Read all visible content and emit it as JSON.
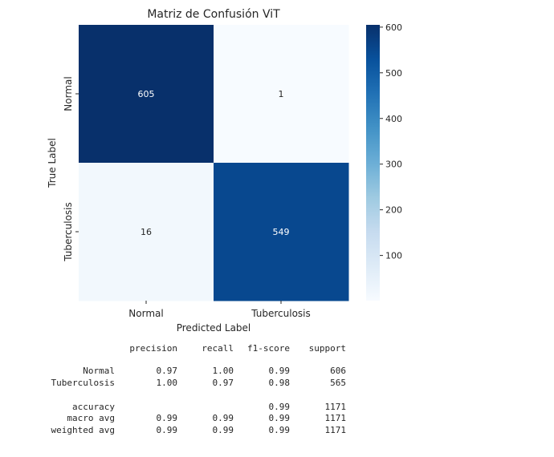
{
  "chart_data": {
    "type": "heatmap",
    "title": "Matriz de Confusión ViT",
    "xlabel": "Predicted Label",
    "ylabel": "True Label",
    "x_categories": [
      "Normal",
      "Tuberculosis"
    ],
    "y_categories": [
      "Normal",
      "Tuberculosis"
    ],
    "values": [
      [
        605,
        1
      ],
      [
        16,
        549
      ]
    ],
    "colormap": "Blues",
    "vmin": 1,
    "vmax": 605,
    "colorbar_ticks": [
      100,
      200,
      300,
      400,
      500,
      600
    ]
  },
  "report": {
    "headers": [
      "precision",
      "recall",
      "f1-score",
      "support"
    ],
    "rows": [
      {
        "label": "Normal",
        "precision": "0.97",
        "recall": "1.00",
        "f1": "0.99",
        "support": "606"
      },
      {
        "label": "Tuberculosis",
        "precision": "1.00",
        "recall": "0.97",
        "f1": "0.98",
        "support": "565"
      },
      {
        "label": "accuracy",
        "precision": "",
        "recall": "",
        "f1": "0.99",
        "support": "1171"
      },
      {
        "label": "macro avg",
        "precision": "0.99",
        "recall": "0.99",
        "f1": "0.99",
        "support": "1171"
      },
      {
        "label": "weighted avg",
        "precision": "0.99",
        "recall": "0.99",
        "f1": "0.99",
        "support": "1171"
      }
    ]
  }
}
